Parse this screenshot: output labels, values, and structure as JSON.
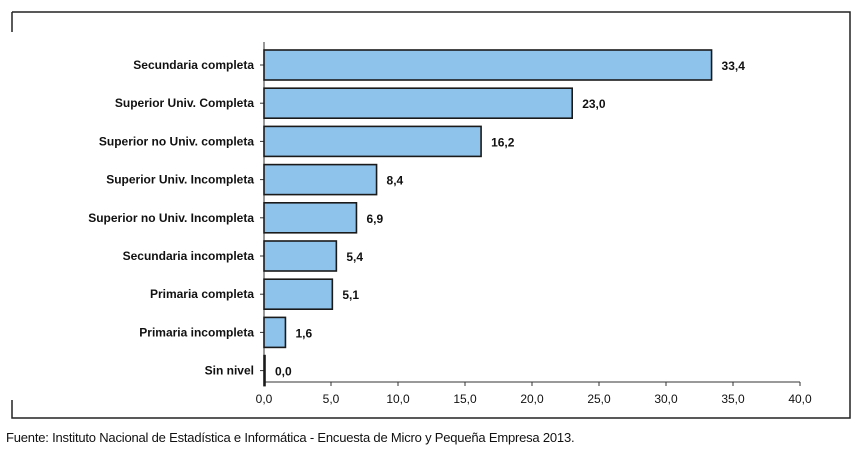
{
  "chart_data": {
    "type": "bar",
    "orientation": "horizontal",
    "categories": [
      "Secundaria completa",
      "Superior Univ. Completa",
      "Superior no Univ. completa",
      "Superior Univ. Incompleta",
      "Superior no Univ. Incompleta",
      "Secundaria incompleta",
      "Primaria completa",
      "Primaria incompleta",
      "Sin nivel"
    ],
    "values": [
      33.4,
      23.0,
      16.2,
      8.4,
      6.9,
      5.4,
      5.1,
      1.6,
      0.0
    ],
    "value_labels": [
      "33,4",
      "23,0",
      "16,2",
      "8,4",
      "6,9",
      "5,4",
      "5,1",
      "1,6",
      "0,0"
    ],
    "xlim": [
      0,
      40
    ],
    "x_ticks": [
      0,
      5,
      10,
      15,
      20,
      25,
      30,
      35,
      40
    ],
    "x_tick_labels": [
      "0,0",
      "5,0",
      "10,0",
      "15,0",
      "20,0",
      "25,0",
      "30,0",
      "35,0",
      "40,0"
    ],
    "grid": false,
    "legend": "none",
    "bar_color": "#8ec3ec",
    "bar_edge_color": "#1a1a1a"
  },
  "source_note": "Fuente: Instituto Nacional de Estadística e Informática - Encuesta de Micro y Pequeña Empresa 2013."
}
